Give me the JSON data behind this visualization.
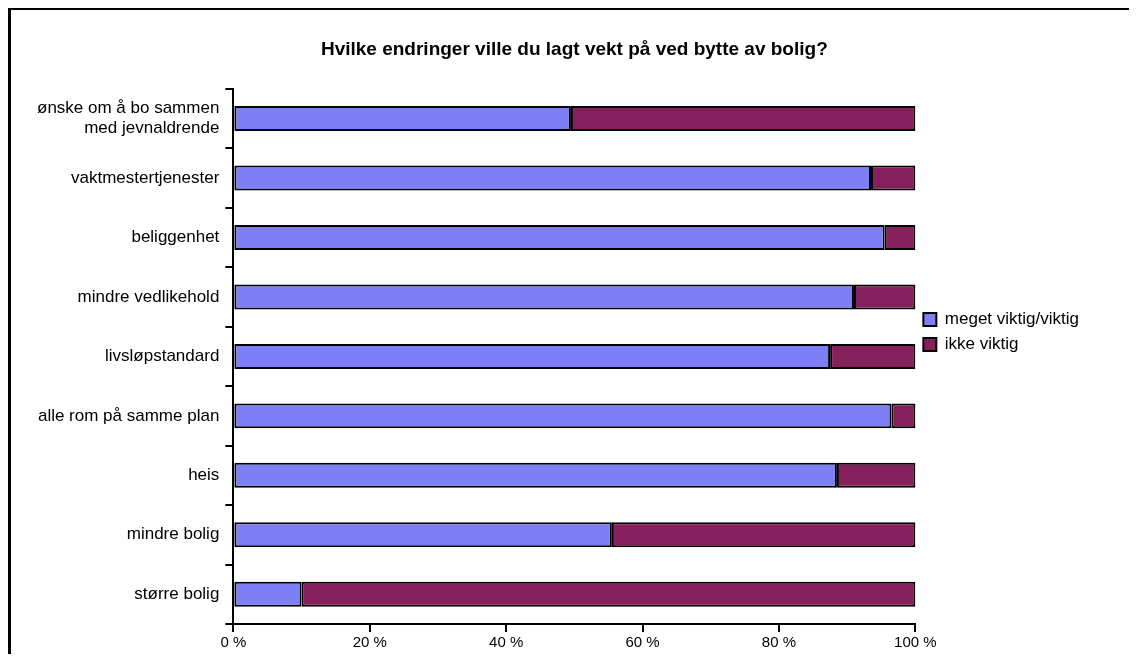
{
  "chart_data": {
    "type": "bar",
    "orientation": "horizontal",
    "stacked": true,
    "title": "Hvilke endringer ville du lagt vekt på ved bytte av bolig?",
    "categories": [
      "ønske om å bo sammen med jevnaldrende",
      "vaktmestertjenester",
      "beliggenhet",
      "mindre vedlikehold",
      "livsløpstandard",
      "alle rom på samme plan",
      "heis",
      "mindre bolig",
      "større bolig"
    ],
    "series": [
      {
        "name": "meget viktig/viktig",
        "color": "#7f7ff5",
        "values": [
          49.5,
          93.5,
          95.5,
          91,
          87.5,
          96.5,
          88.5,
          55.5,
          10
        ]
      },
      {
        "name": "ikke viktig",
        "color": "#86205c",
        "values": [
          50.5,
          6.5,
          4.5,
          9,
          12.5,
          3.5,
          11.5,
          44.5,
          90
        ]
      }
    ],
    "xlim": [
      0,
      100
    ],
    "xticks": [
      {
        "value": 0,
        "label": "0 %"
      },
      {
        "value": 20,
        "label": "20 %"
      },
      {
        "value": 40,
        "label": "40 %"
      },
      {
        "value": 60,
        "label": "60 %"
      },
      {
        "value": 80,
        "label": "80 %"
      },
      {
        "value": 100,
        "label": "100 %"
      }
    ],
    "legend": "right"
  }
}
